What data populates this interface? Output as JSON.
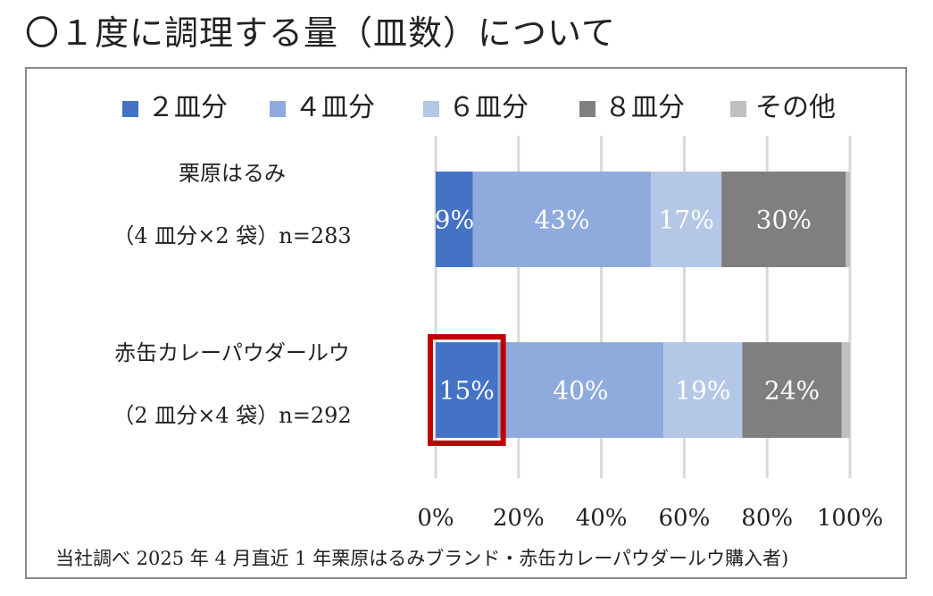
{
  "heading": "〇１度に調理する量（皿数）について",
  "footnote": "当社調べ 2025 年 4 月直近 1 年栗原はるみブランド・赤缶カレーパウダールウ購入者)",
  "chart_data": {
    "type": "bar",
    "orientation": "horizontal",
    "stacked": true,
    "legend_position": "top",
    "grid": true,
    "xlim": [
      0,
      100
    ],
    "x_ticks": [
      "0%",
      "20%",
      "40%",
      "60%",
      "80%",
      "100%"
    ],
    "categories": [
      {
        "label_line1": "栗原はるみ",
        "label_line2": "（4 皿分×2 袋）n=283"
      },
      {
        "label_line1": "赤缶カレーパウダールウ",
        "label_line2": "（2 皿分×4 袋）n=292"
      }
    ],
    "series": [
      {
        "name": "２皿分",
        "color": "#4472c4",
        "values": [
          9,
          15
        ],
        "labels": [
          "9%",
          "15%"
        ]
      },
      {
        "name": "４皿分",
        "color": "#8faadc",
        "values": [
          43,
          40
        ],
        "labels": [
          "43%",
          "40%"
        ]
      },
      {
        "name": "６皿分",
        "color": "#b4c7e7",
        "values": [
          17,
          19
        ],
        "labels": [
          "17%",
          "19%"
        ]
      },
      {
        "name": "８皿分",
        "color": "#7f7f7f",
        "values": [
          30,
          24
        ],
        "labels": [
          "30%",
          "24%"
        ]
      },
      {
        "name": "その他",
        "color": "#bfbfbf",
        "values": [
          1,
          2
        ],
        "labels": [
          "",
          ""
        ]
      }
    ],
    "highlight": {
      "category_index": 1,
      "series_index": 0,
      "color": "#c00000"
    }
  }
}
